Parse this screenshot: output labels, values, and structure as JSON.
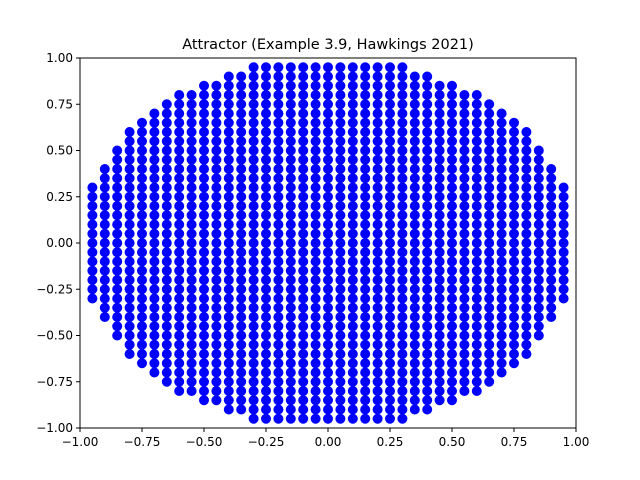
{
  "chart_data": {
    "type": "scatter",
    "title": "Attractor (Example 3.9, Hawkings 2021)",
    "xlabel": "",
    "ylabel": "",
    "xlim": [
      -1.0,
      1.0
    ],
    "ylim": [
      -1.0,
      1.0
    ],
    "grid": false,
    "point_color": "#0000ff",
    "x_ticks": [
      -1.0,
      -0.75,
      -0.5,
      -0.25,
      0.0,
      0.25,
      0.5,
      0.75,
      1.0
    ],
    "x_tick_labels": [
      "−1.00",
      "−0.75",
      "−0.50",
      "−0.25",
      "0.00",
      "0.25",
      "0.50",
      "0.75",
      "1.00"
    ],
    "y_ticks": [
      -1.0,
      -0.75,
      -0.5,
      -0.25,
      0.0,
      0.25,
      0.5,
      0.75,
      1.0
    ],
    "y_tick_labels": [
      "−1.00",
      "−0.75",
      "−0.50",
      "−0.25",
      "0.00",
      "0.25",
      "0.50",
      "0.75",
      "1.00"
    ],
    "point_grid": {
      "x_start": -0.95,
      "y_start": -0.95,
      "step": 0.05,
      "count": 39,
      "y_extent_by_column": [
        0.3,
        0.4,
        0.5,
        0.6,
        0.65,
        0.7,
        0.75,
        0.8,
        0.8,
        0.85,
        0.85,
        0.9,
        0.9,
        0.95,
        0.95,
        0.95,
        0.95,
        0.95,
        0.95,
        0.95,
        0.95,
        0.95,
        0.95,
        0.95,
        0.95,
        0.95,
        0.9,
        0.9,
        0.85,
        0.85,
        0.8,
        0.8,
        0.75,
        0.7,
        0.65,
        0.6,
        0.5,
        0.4,
        0.3
      ]
    }
  }
}
